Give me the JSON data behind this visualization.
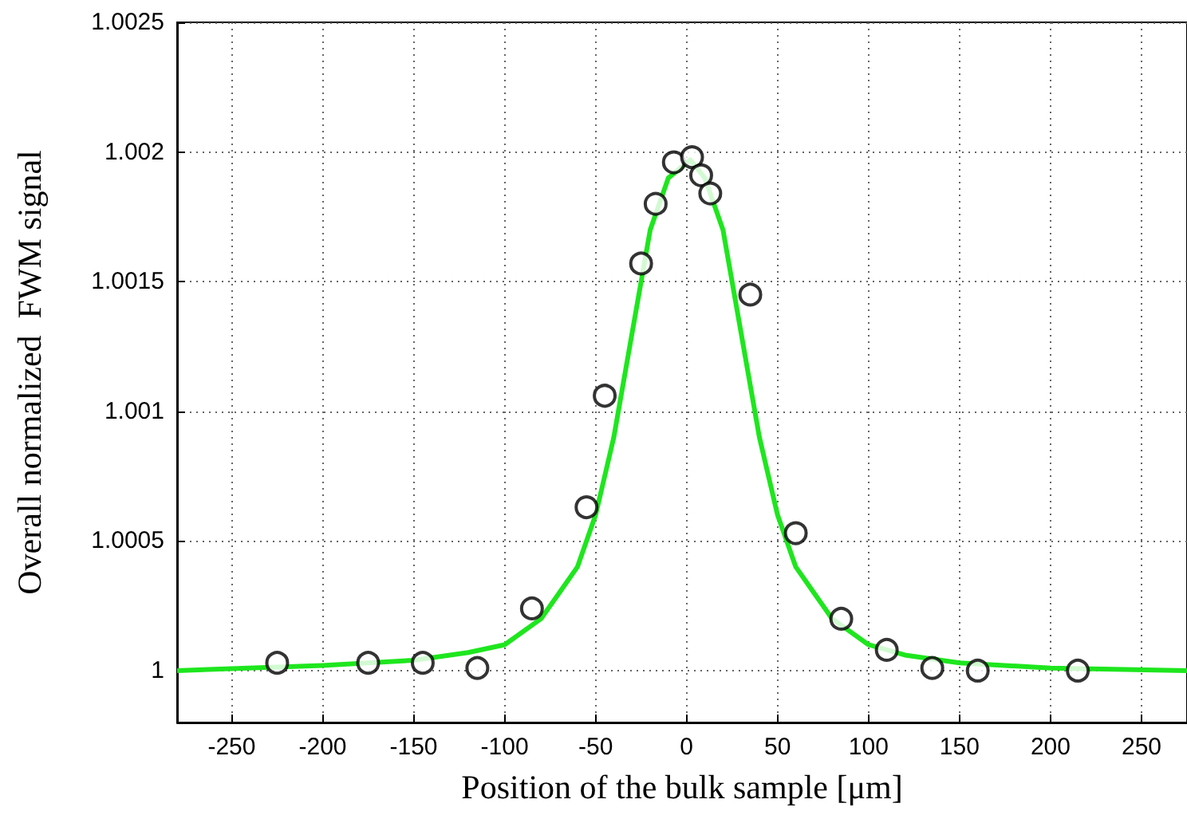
{
  "chart_data": {
    "type": "scatter",
    "xlabel": "Position of the bulk sample [μm]",
    "ylabel": "Overall normalized  FWM signal",
    "xlim": [
      -280,
      275
    ],
    "ylim": [
      0.9998,
      1.0025
    ],
    "xticks": [
      -250,
      -200,
      -150,
      -100,
      -50,
      0,
      50,
      100,
      150,
      200,
      250
    ],
    "yticks": [
      1,
      1.0005,
      1.001,
      1.0015,
      1.002,
      1.0025
    ],
    "grid": true,
    "series": [
      {
        "marker": "circle",
        "color": "#000000",
        "x": [
          -225,
          -175,
          -145,
          -115,
          -85,
          -55,
          -45,
          -25,
          -17,
          -7,
          3,
          8,
          13,
          35,
          60,
          85,
          110,
          135,
          160,
          215
        ],
        "values": [
          1.00003,
          1.00003,
          1.00003,
          1.00001,
          1.00024,
          1.00063,
          1.00106,
          1.00157,
          1.0018,
          1.00196,
          1.00198,
          1.00191,
          1.00184,
          1.00145,
          1.00053,
          1.0002,
          1.00008,
          1.00001,
          1.0,
          1.0
        ]
      },
      {
        "type": "line",
        "marker": "none",
        "line_style": "solid",
        "color": "#1ee61e",
        "x": [
          -280,
          -200,
          -150,
          -120,
          -100,
          -80,
          -70,
          -60,
          -50,
          -40,
          -30,
          -20,
          -10,
          2,
          10,
          20,
          30,
          40,
          50,
          60,
          70,
          80,
          100,
          120,
          150,
          200,
          275
        ],
        "values": [
          1.0,
          1.00002,
          1.00004,
          1.00007,
          1.0001,
          1.0002,
          1.0003,
          1.0004,
          1.0006,
          1.0009,
          1.0013,
          1.0017,
          1.0019,
          1.00197,
          1.0019,
          1.0017,
          1.0013,
          1.0009,
          1.0006,
          1.0004,
          1.0003,
          1.0002,
          1.0001,
          1.00006,
          1.00003,
          1.00001,
          1.0
        ]
      }
    ]
  }
}
